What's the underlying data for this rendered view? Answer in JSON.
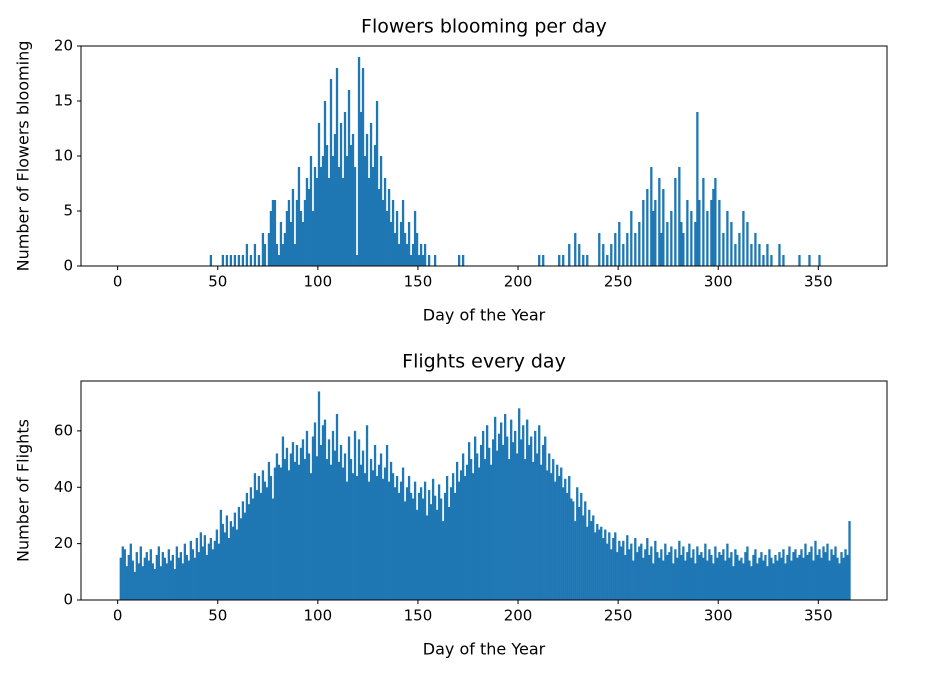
{
  "chart_data": [
    {
      "type": "bar",
      "title": "Flowers blooming per day",
      "x_label": "Day of the Year",
      "y_label": "Number of Flowers blooming",
      "color": "#1f77b4",
      "x": [
        46,
        52,
        54,
        56,
        58,
        60,
        62,
        64,
        66,
        68,
        70,
        72,
        73,
        75,
        76,
        77,
        78,
        79,
        80,
        81,
        82,
        83,
        84,
        85,
        86,
        87,
        88,
        89,
        90,
        91,
        92,
        93,
        94,
        95,
        96,
        97,
        98,
        99,
        100,
        101,
        102,
        103,
        104,
        105,
        106,
        107,
        108,
        109,
        110,
        111,
        112,
        113,
        114,
        115,
        116,
        117,
        118,
        119,
        120,
        121,
        122,
        123,
        124,
        125,
        126,
        127,
        128,
        129,
        130,
        131,
        132,
        133,
        134,
        135,
        136,
        137,
        138,
        139,
        140,
        141,
        142,
        143,
        144,
        145,
        146,
        147,
        148,
        149,
        150,
        151,
        152,
        153,
        155,
        158,
        170,
        172,
        210,
        212,
        220,
        222,
        225,
        228,
        230,
        232,
        234,
        240,
        242,
        244,
        246,
        248,
        250,
        252,
        254,
        256,
        258,
        260,
        262,
        264,
        266,
        267,
        268,
        270,
        271,
        272,
        274,
        276,
        278,
        280,
        281,
        282,
        284,
        286,
        288,
        289,
        290,
        292,
        294,
        296,
        297,
        298,
        300,
        302,
        304,
        306,
        308,
        310,
        312,
        314,
        316,
        318,
        320,
        322,
        324,
        326,
        330,
        332,
        340,
        345,
        350
      ],
      "values": [
        1,
        1,
        1,
        1,
        1,
        1,
        1,
        2,
        1,
        2,
        1,
        3,
        2,
        3,
        5,
        6,
        6,
        2,
        1,
        4,
        2,
        3,
        5,
        6,
        4,
        7,
        2,
        6,
        9,
        5,
        4,
        6,
        8,
        7,
        10,
        5,
        9,
        8,
        13,
        9,
        10,
        15,
        11,
        8,
        17,
        10,
        12,
        18,
        9,
        13,
        8,
        14,
        10,
        16,
        11,
        12,
        9,
        1,
        19,
        14,
        18,
        10,
        12,
        8,
        13,
        9,
        11,
        15,
        7,
        10,
        6,
        8,
        5,
        7,
        4,
        6,
        3,
        5,
        2,
        4,
        6,
        3,
        2,
        4,
        1,
        2,
        5,
        3,
        1,
        2,
        1,
        2,
        1,
        1,
        1,
        1,
        1,
        1,
        1,
        1,
        2,
        3,
        2,
        1,
        1,
        3,
        2,
        1,
        2,
        3,
        4,
        2,
        3,
        5,
        3,
        4,
        6,
        7,
        9,
        5,
        6,
        8,
        3,
        7,
        4,
        5,
        8,
        9,
        4,
        3,
        6,
        5,
        4,
        14,
        6,
        8,
        5,
        6,
        7,
        8,
        6,
        3,
        5,
        4,
        2,
        3,
        5,
        4,
        2,
        3,
        2,
        1,
        2,
        1,
        2,
        1,
        1,
        1,
        1
      ],
      "xlim": [
        -18.3,
        384.3
      ],
      "xticks": [
        0,
        50,
        100,
        150,
        200,
        250,
        300,
        350
      ],
      "ylim": [
        0,
        20
      ],
      "yticks": [
        0,
        5,
        10,
        15,
        20
      ]
    },
    {
      "type": "bar",
      "title": "Flights every day",
      "x_label": "Day of the Year",
      "y_label": "Number of Flights",
      "color": "#1f77b4",
      "x": [
        1,
        2,
        3,
        4,
        5,
        6,
        7,
        8,
        9,
        10,
        11,
        12,
        13,
        14,
        15,
        16,
        17,
        18,
        19,
        20,
        21,
        22,
        23,
        24,
        25,
        26,
        27,
        28,
        29,
        30,
        31,
        32,
        33,
        34,
        35,
        36,
        37,
        38,
        39,
        40,
        41,
        42,
        43,
        44,
        45,
        46,
        47,
        48,
        49,
        50,
        51,
        52,
        53,
        54,
        55,
        56,
        57,
        58,
        59,
        60,
        61,
        62,
        63,
        64,
        65,
        66,
        67,
        68,
        69,
        70,
        71,
        72,
        73,
        74,
        75,
        76,
        77,
        78,
        79,
        80,
        81,
        82,
        83,
        84,
        85,
        86,
        87,
        88,
        89,
        90,
        91,
        92,
        93,
        94,
        95,
        96,
        97,
        98,
        99,
        100,
        101,
        102,
        103,
        104,
        105,
        106,
        107,
        108,
        109,
        110,
        111,
        112,
        113,
        114,
        115,
        116,
        117,
        118,
        119,
        120,
        121,
        122,
        123,
        124,
        125,
        126,
        127,
        128,
        129,
        130,
        131,
        132,
        133,
        134,
        135,
        136,
        137,
        138,
        139,
        140,
        141,
        142,
        143,
        144,
        145,
        146,
        147,
        148,
        149,
        150,
        151,
        152,
        153,
        154,
        155,
        156,
        157,
        158,
        159,
        160,
        161,
        162,
        163,
        164,
        165,
        166,
        167,
        168,
        169,
        170,
        171,
        172,
        173,
        174,
        175,
        176,
        177,
        178,
        179,
        180,
        181,
        182,
        183,
        184,
        185,
        186,
        187,
        188,
        189,
        190,
        191,
        192,
        193,
        194,
        195,
        196,
        197,
        198,
        199,
        200,
        201,
        202,
        203,
        204,
        205,
        206,
        207,
        208,
        209,
        210,
        211,
        212,
        213,
        214,
        215,
        216,
        217,
        218,
        219,
        220,
        221,
        222,
        223,
        224,
        225,
        226,
        227,
        228,
        229,
        230,
        231,
        232,
        233,
        234,
        235,
        236,
        237,
        238,
        239,
        240,
        241,
        242,
        243,
        244,
        245,
        246,
        247,
        248,
        249,
        250,
        251,
        252,
        253,
        254,
        255,
        256,
        257,
        258,
        259,
        260,
        261,
        262,
        263,
        264,
        265,
        266,
        267,
        268,
        269,
        270,
        271,
        272,
        273,
        274,
        275,
        276,
        277,
        278,
        279,
        280,
        281,
        282,
        283,
        284,
        285,
        286,
        287,
        288,
        289,
        290,
        291,
        292,
        293,
        294,
        295,
        296,
        297,
        298,
        299,
        300,
        301,
        302,
        303,
        304,
        305,
        306,
        307,
        308,
        309,
        310,
        311,
        312,
        313,
        314,
        315,
        316,
        317,
        318,
        319,
        320,
        321,
        322,
        323,
        324,
        325,
        326,
        327,
        328,
        329,
        330,
        331,
        332,
        333,
        334,
        335,
        336,
        337,
        338,
        339,
        340,
        341,
        342,
        343,
        344,
        345,
        346,
        347,
        348,
        349,
        350,
        351,
        352,
        353,
        354,
        355,
        356,
        357,
        358,
        359,
        360,
        361,
        362,
        363,
        364,
        365
      ],
      "values": [
        15,
        19,
        18,
        12,
        16,
        20,
        14,
        10,
        17,
        13,
        19,
        12,
        15,
        17,
        14,
        18,
        13,
        11,
        16,
        19,
        12,
        17,
        15,
        13,
        18,
        14,
        16,
        11,
        19,
        15,
        17,
        13,
        20,
        16,
        14,
        21,
        18,
        15,
        22,
        17,
        24,
        19,
        23,
        16,
        20,
        22,
        18,
        21,
        25,
        20,
        32,
        27,
        24,
        30,
        22,
        28,
        26,
        31,
        25,
        33,
        29,
        35,
        31,
        38,
        34,
        40,
        36,
        45,
        39,
        44,
        38,
        46,
        42,
        40,
        49,
        44,
        36,
        47,
        52,
        48,
        47,
        58,
        50,
        54,
        46,
        52,
        56,
        49,
        55,
        48,
        54,
        57,
        50,
        60,
        52,
        45,
        58,
        63,
        51,
        74,
        55,
        62,
        64,
        50,
        57,
        48,
        60,
        53,
        66,
        49,
        55,
        47,
        52,
        42,
        58,
        50,
        45,
        60,
        44,
        57,
        48,
        53,
        45,
        62,
        42,
        50,
        46,
        55,
        44,
        48,
        52,
        43,
        47,
        55,
        42,
        49,
        45,
        40,
        44,
        38,
        42,
        47,
        35,
        40,
        44,
        38,
        36,
        42,
        32,
        38,
        40,
        36,
        42,
        30,
        39,
        34,
        43,
        37,
        32,
        41,
        36,
        28,
        38,
        44,
        33,
        40,
        45,
        38,
        49,
        42,
        46,
        52,
        44,
        48,
        56,
        50,
        45,
        58,
        52,
        47,
        55,
        60,
        50,
        62,
        54,
        48,
        57,
        65,
        53,
        59,
        63,
        55,
        66,
        58,
        50,
        64,
        56,
        60,
        52,
        68,
        57,
        62,
        50,
        64,
        55,
        58,
        49,
        60,
        52,
        62,
        48,
        55,
        58,
        46,
        52,
        45,
        50,
        42,
        48,
        44,
        47,
        40,
        43,
        38,
        44,
        36,
        35,
        28,
        40,
        33,
        38,
        30,
        35,
        26,
        32,
        28,
        30,
        24,
        27,
        25,
        26,
        22,
        25,
        20,
        24,
        18,
        22,
        24,
        17,
        21,
        19,
        21,
        16,
        23,
        18,
        20,
        14,
        22,
        17,
        19,
        20,
        15,
        18,
        22,
        16,
        19,
        13,
        21,
        17,
        15,
        18,
        14,
        20,
        16,
        17,
        19,
        13,
        18,
        15,
        21,
        16,
        19,
        14,
        17,
        20,
        15,
        18,
        13,
        19,
        16,
        17,
        15,
        20,
        14,
        18,
        16,
        13,
        19,
        15,
        17,
        16,
        18,
        14,
        20,
        15,
        17,
        12,
        18,
        16,
        14,
        15,
        13,
        17,
        19,
        14,
        12,
        16,
        18,
        13,
        15,
        17,
        14,
        16,
        12,
        18,
        15,
        13,
        16,
        14,
        17,
        15,
        18,
        13,
        16,
        19,
        14,
        17,
        18,
        15,
        16,
        18,
        15,
        20,
        16,
        17,
        19,
        14,
        21,
        16,
        18,
        15,
        19,
        17,
        20,
        14,
        18,
        16,
        19,
        15,
        13,
        17,
        15,
        18,
        16,
        28
      ],
      "xlim": [
        -18.3,
        384.3
      ],
      "xticks": [
        0,
        50,
        100,
        150,
        200,
        250,
        300,
        350
      ],
      "ylim": [
        0,
        77.7
      ],
      "yticks": [
        0,
        20,
        40,
        60
      ]
    }
  ]
}
